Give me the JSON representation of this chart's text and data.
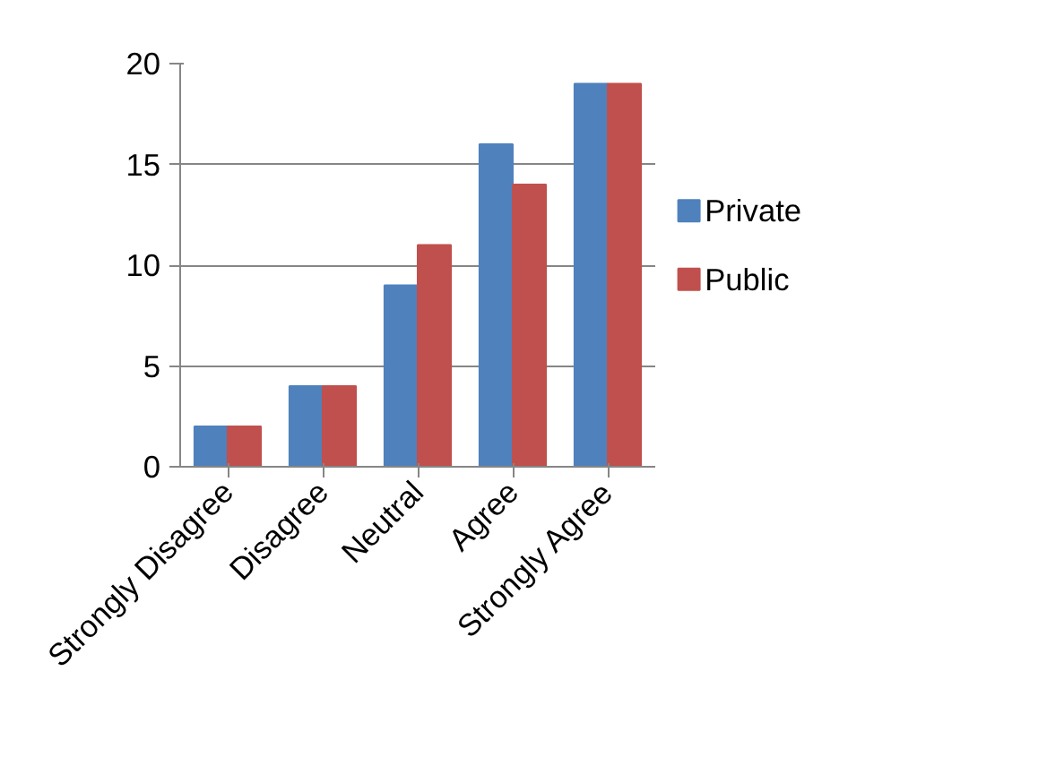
{
  "chart_data": {
    "type": "bar",
    "categories": [
      "Strongly Disagree",
      "Disagree",
      "Neutral",
      "Agree",
      "Strongly Agree"
    ],
    "series": [
      {
        "name": "Private",
        "color": "#4f81bd",
        "values": [
          2,
          4,
          9,
          16,
          19
        ]
      },
      {
        "name": "Public",
        "color": "#c0504d",
        "values": [
          2,
          4,
          11,
          14,
          19
        ]
      }
    ],
    "ylim": [
      0,
      20
    ],
    "yticks": [
      0,
      5,
      10,
      15,
      20
    ],
    "grid": "y",
    "legend": "right"
  }
}
